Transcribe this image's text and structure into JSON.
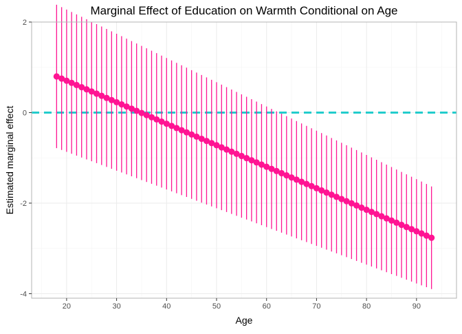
{
  "chart_data": {
    "type": "scatter",
    "title": "Marginal Effect of Education on Warmth Conditional on Age",
    "xlabel": "Age",
    "ylabel": "Estimated marginal effect",
    "xlim": [
      13,
      98
    ],
    "ylim": [
      -4.1,
      2.0
    ],
    "x_ticks": [
      20,
      30,
      40,
      50,
      60,
      70,
      80,
      90
    ],
    "y_ticks": [
      2,
      0,
      -2,
      -4
    ],
    "x_tick_labels": [
      "20",
      "30",
      "40",
      "50",
      "60",
      "70",
      "80",
      "90"
    ],
    "y_tick_labels": [
      "2",
      "0",
      "-2",
      "-4"
    ],
    "grid": true,
    "reference_line": {
      "y": 0,
      "style": "dashed",
      "color": "#22cccc"
    },
    "series_color": "#ff1493",
    "age_range": [
      18,
      93
    ],
    "point_estimate_line": {
      "intercept": 1.6544,
      "slope": -0.04752
    },
    "ci_lower_line": {
      "intercept": -0.0376,
      "slope": -0.04152
    },
    "ci_upper_line": {
      "intercept": 3.3464,
      "slope": -0.05352
    }
  }
}
